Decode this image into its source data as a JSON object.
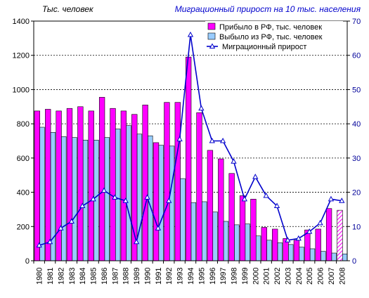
{
  "chart_data": {
    "type": "bar",
    "title_left": "Тыс. человек",
    "title_right": "Миграционный прирост на 10 тыс. населения",
    "categories": [
      "1980",
      "1981",
      "1982",
      "1983",
      "1984",
      "1985",
      "1986",
      "1987",
      "1988",
      "1989",
      "1990",
      "1991",
      "1992",
      "1993",
      "1994",
      "1995",
      "1996",
      "1997",
      "1998",
      "1999",
      "2000",
      "2001",
      "2002",
      "2003",
      "2004",
      "2005",
      "2006",
      "2007",
      "2008"
    ],
    "ylim": [
      0,
      1400
    ],
    "yticks": [
      "0",
      "200",
      "400",
      "600",
      "800",
      "1000",
      "1200",
      "1400"
    ],
    "y2lim": [
      0,
      70
    ],
    "y2ticks": [
      "0",
      "10",
      "20",
      "30",
      "40",
      "50",
      "60",
      "70"
    ],
    "grid": true,
    "legend_position": "top-right",
    "series": [
      {
        "name": "Прибыло в РФ, тыс. человек",
        "kind": "bar",
        "color": "#ff00ff",
        "values": [
          875,
          885,
          875,
          890,
          900,
          875,
          955,
          890,
          875,
          855,
          910,
          690,
          925,
          925,
          1190,
          865,
          645,
          595,
          510,
          380,
          360,
          195,
          185,
          130,
          120,
          180,
          185,
          305,
          295
        ],
        "hatched_last": true
      },
      {
        "name": "Выбыло из РФ, тыс. человек",
        "kind": "bar",
        "color": "#99ccff",
        "values": [
          780,
          750,
          725,
          720,
          705,
          705,
          720,
          770,
          790,
          740,
          730,
          675,
          670,
          480,
          340,
          345,
          285,
          230,
          210,
          215,
          145,
          120,
          105,
          95,
          80,
          70,
          55,
          45,
          40
        ]
      },
      {
        "name": "Миграционный прирост",
        "kind": "line",
        "axis": "right",
        "color": "#0000cc",
        "values": [
          4.5,
          5.5,
          9.5,
          11.5,
          16,
          18,
          20.5,
          18.5,
          17.5,
          5.5,
          18.5,
          9.5,
          17.5,
          35.5,
          66,
          44.5,
          35,
          35,
          29,
          18,
          24.5,
          19,
          16,
          6,
          6.5,
          8.5,
          11,
          18,
          17.5
        ]
      }
    ]
  }
}
